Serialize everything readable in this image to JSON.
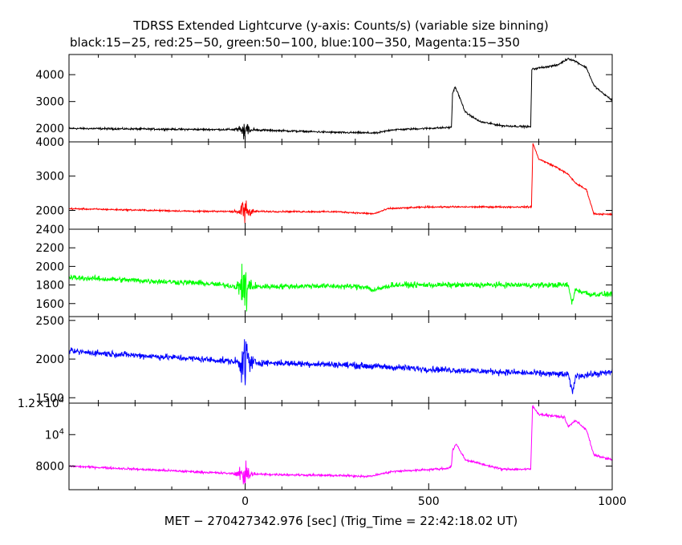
{
  "chart_data": {
    "type": "line",
    "title": "TDRSS Extended Lightcurve (y-axis: Counts/s) (variable size binning)",
    "subtitle": "black:15−25, red:25−50, green:50−100, blue:100−350, Magenta:15−350",
    "xlabel": "MET − 270427342.976 [sec] (Trig_Time = 22:42:18.02 UT)",
    "xlim": [
      -480,
      1000
    ],
    "xticks": [
      {
        "value": 0,
        "label": "0"
      },
      {
        "value": 500,
        "label": "500"
      },
      {
        "value": 1000,
        "label": "1000"
      }
    ],
    "panels": [
      {
        "name": "15-25 keV",
        "color": "#000000",
        "ylim": [
          1500,
          4750
        ],
        "yticks": [
          {
            "value": 2000,
            "label": "2000"
          },
          {
            "value": 3000,
            "label": "3000"
          },
          {
            "value": 4000,
            "label": "4000"
          }
        ],
        "noise": 30,
        "points": [
          [
            -480,
            2000
          ],
          [
            -300,
            1980
          ],
          [
            -120,
            1960
          ],
          [
            -10,
            1960
          ],
          [
            250,
            1850
          ],
          [
            360,
            1830
          ],
          [
            400,
            1950
          ],
          [
            550,
            2030
          ],
          [
            562,
            2040
          ],
          [
            565,
            3300
          ],
          [
            572,
            3550
          ],
          [
            580,
            3300
          ],
          [
            600,
            2600
          ],
          [
            640,
            2250
          ],
          [
            700,
            2100
          ],
          [
            778,
            2060
          ],
          [
            781,
            4200
          ],
          [
            800,
            4250
          ],
          [
            850,
            4350
          ],
          [
            880,
            4600
          ],
          [
            900,
            4500
          ],
          [
            930,
            4250
          ],
          [
            950,
            3600
          ],
          [
            975,
            3300
          ],
          [
            1000,
            3050
          ]
        ],
        "burst": {
          "center": 0,
          "width": 35,
          "amp": 300
        }
      },
      {
        "name": "25-50 keV",
        "color": "#ff0000",
        "ylim": [
          1450,
          4000
        ],
        "yticks": [
          {
            "value": 2000,
            "label": "2000"
          },
          {
            "value": 3000,
            "label": "3000"
          },
          {
            "value": 4000,
            "label": "4000"
          }
        ],
        "noise": 20,
        "points": [
          [
            -480,
            2050
          ],
          [
            -120,
            1970
          ],
          [
            -10,
            1970
          ],
          [
            250,
            1960
          ],
          [
            350,
            1900
          ],
          [
            390,
            2050
          ],
          [
            500,
            2100
          ],
          [
            780,
            2100
          ],
          [
            784,
            3950
          ],
          [
            800,
            3500
          ],
          [
            850,
            3250
          ],
          [
            880,
            3050
          ],
          [
            900,
            2800
          ],
          [
            930,
            2600
          ],
          [
            950,
            1900
          ],
          [
            1000,
            1880
          ]
        ],
        "burst": {
          "center": 0,
          "width": 35,
          "amp": 280
        }
      },
      {
        "name": "50-100 keV",
        "color": "#00ff00",
        "ylim": [
          1460,
          2400
        ],
        "yticks": [
          {
            "value": 1600,
            "label": "1600"
          },
          {
            "value": 1800,
            "label": "1800"
          },
          {
            "value": 2000,
            "label": "2000"
          },
          {
            "value": 2200,
            "label": "2200"
          },
          {
            "value": 2400,
            "label": "2400"
          }
        ],
        "noise": 25,
        "points": [
          [
            -480,
            1880
          ],
          [
            -120,
            1820
          ],
          [
            -10,
            1780
          ],
          [
            200,
            1790
          ],
          [
            330,
            1780
          ],
          [
            350,
            1740
          ],
          [
            400,
            1800
          ],
          [
            880,
            1800
          ],
          [
            890,
            1610
          ],
          [
            900,
            1750
          ],
          [
            940,
            1700
          ],
          [
            1000,
            1700
          ]
        ],
        "burst": {
          "center": 0,
          "width": 30,
          "amp": 280
        }
      },
      {
        "name": "100-350 keV",
        "color": "#0000ff",
        "ylim": [
          1430,
          2550
        ],
        "yticks": [
          {
            "value": 1500,
            "label": "1500"
          },
          {
            "value": 2000,
            "label": "2000"
          },
          {
            "value": 2500,
            "label": "2500"
          }
        ],
        "noise": 35,
        "points": [
          [
            -480,
            2100
          ],
          [
            -120,
            2000
          ],
          [
            -10,
            1960
          ],
          [
            250,
            1930
          ],
          [
            500,
            1870
          ],
          [
            880,
            1800
          ],
          [
            892,
            1560
          ],
          [
            900,
            1780
          ],
          [
            1000,
            1830
          ]
        ],
        "burst": {
          "center": 0,
          "width": 30,
          "amp": 350
        }
      },
      {
        "name": "15-350 keV",
        "color": "#ff00ff",
        "ylim": [
          6500,
          12000
        ],
        "yticks": [
          {
            "value": 8000,
            "label": "8000"
          },
          {
            "value": 10000,
            "label": "10^4"
          },
          {
            "value": 12000,
            "label": "1.2×10^4"
          }
        ],
        "noise": 60,
        "points": [
          [
            -480,
            8000
          ],
          [
            -10,
            7500
          ],
          [
            250,
            7400
          ],
          [
            340,
            7350
          ],
          [
            400,
            7650
          ],
          [
            550,
            7850
          ],
          [
            562,
            8000
          ],
          [
            565,
            9000
          ],
          [
            575,
            9400
          ],
          [
            600,
            8400
          ],
          [
            700,
            7800
          ],
          [
            778,
            7800
          ],
          [
            783,
            11800
          ],
          [
            800,
            11300
          ],
          [
            870,
            11100
          ],
          [
            880,
            10500
          ],
          [
            900,
            10900
          ],
          [
            930,
            10300
          ],
          [
            950,
            8700
          ],
          [
            1000,
            8400
          ]
        ],
        "burst": {
          "center": 0,
          "width": 30,
          "amp": 900
        }
      }
    ]
  }
}
